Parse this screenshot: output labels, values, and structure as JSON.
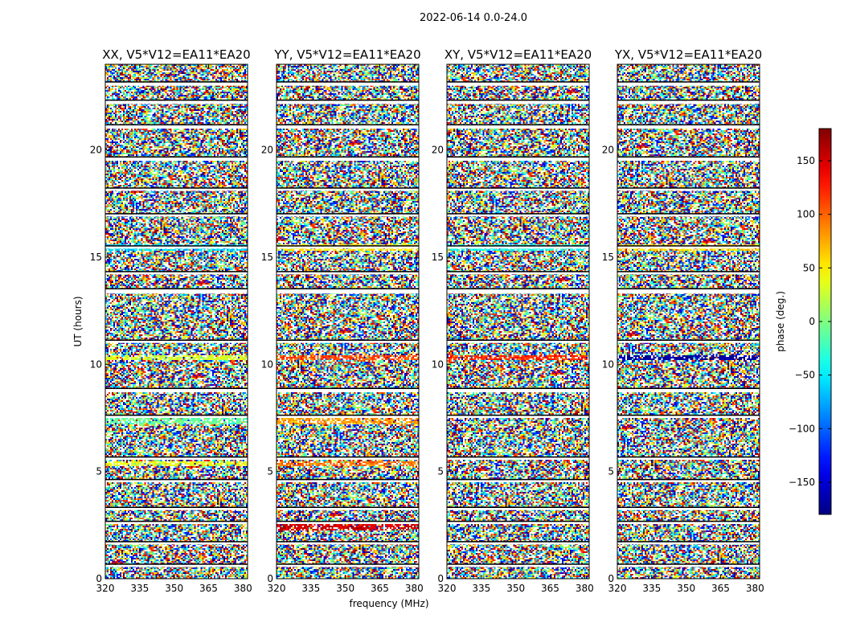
{
  "figure": {
    "suptitle": "2022-06-14 0.0-24.0",
    "xlabel": "frequency (MHz)",
    "ylabel": "UT (hours)",
    "colorbar_label": "phase (deg.)"
  },
  "chart_data": {
    "type": "heatmap",
    "title": "2022-06-14 0.0-24.0",
    "xlabel": "frequency (MHz)",
    "ylabel": "UT (hours)",
    "xlim": [
      320,
      382
    ],
    "ylim": [
      0,
      24
    ],
    "xticks": [
      320,
      335,
      350,
      365,
      380
    ],
    "yticks": [
      0,
      5,
      10,
      15,
      20
    ],
    "colormap": "jet",
    "colorbar": {
      "label": "phase (deg.)",
      "range": [
        -180,
        180
      ],
      "ticks": [
        150,
        100,
        50,
        0,
        -50,
        -100,
        -150
      ],
      "tick_labels": [
        "150",
        "100",
        "50",
        "0",
        "−50",
        "−100",
        "−150"
      ]
    },
    "panels": [
      {
        "title": "XX, V5*V12=EA11*EA20",
        "polarization": "XX",
        "baseline": "V5*V12=EA11*EA20"
      },
      {
        "title": "YY, V5*V12=EA11*EA20",
        "polarization": "YY",
        "baseline": "V5*V12=EA11*EA20"
      },
      {
        "title": "XY, V5*V12=EA11*EA20",
        "polarization": "XY",
        "baseline": "V5*V12=EA11*EA20"
      },
      {
        "title": "YX, V5*V12=EA11*EA20",
        "polarization": "YX",
        "baseline": "V5*V12=EA11*EA20"
      }
    ],
    "flagged_bands_hours": [
      [
        23.0,
        23.15
      ],
      [
        22.15,
        22.3
      ],
      [
        21.0,
        21.15
      ],
      [
        19.5,
        19.65
      ],
      [
        18.1,
        18.2
      ],
      [
        16.9,
        17.0
      ],
      [
        15.4,
        15.5
      ],
      [
        14.2,
        14.3
      ],
      [
        13.3,
        13.5
      ],
      [
        11.0,
        11.1
      ],
      [
        8.7,
        8.85
      ],
      [
        7.5,
        7.6
      ],
      [
        5.55,
        5.65
      ],
      [
        4.5,
        4.6
      ],
      [
        3.2,
        3.3
      ],
      [
        2.55,
        2.65
      ],
      [
        1.6,
        1.7
      ],
      [
        0.55,
        0.65
      ]
    ],
    "coherent_bands_hours": [
      {
        "panel": "XX",
        "range": [
          15.4,
          15.5
        ],
        "phase_deg": -60
      },
      {
        "panel": "XX",
        "range": [
          10.25,
          10.35
        ],
        "phase_deg": 30
      },
      {
        "panel": "XX",
        "range": [
          7.3,
          7.4
        ],
        "phase_deg": -10
      },
      {
        "panel": "XX",
        "range": [
          5.3,
          5.4
        ],
        "phase_deg": 35
      },
      {
        "panel": "YY",
        "range": [
          15.4,
          15.5
        ],
        "phase_deg": 50
      },
      {
        "panel": "YY",
        "range": [
          10.25,
          10.35
        ],
        "phase_deg": 110
      },
      {
        "panel": "YY",
        "range": [
          7.3,
          7.4
        ],
        "phase_deg": 80
      },
      {
        "panel": "YY",
        "range": [
          5.3,
          5.4
        ],
        "phase_deg": 95
      },
      {
        "panel": "YY",
        "range": [
          2.35,
          2.45
        ],
        "phase_deg": 150
      },
      {
        "panel": "XY",
        "range": [
          10.25,
          10.35
        ],
        "phase_deg": 120
      },
      {
        "panel": "XY",
        "range": [
          15.4,
          15.5
        ],
        "phase_deg": -40
      },
      {
        "panel": "YX",
        "range": [
          10.25,
          10.35
        ],
        "phase_deg": -170
      },
      {
        "panel": "YX",
        "range": [
          15.4,
          15.5
        ],
        "phase_deg": 60
      }
    ]
  }
}
